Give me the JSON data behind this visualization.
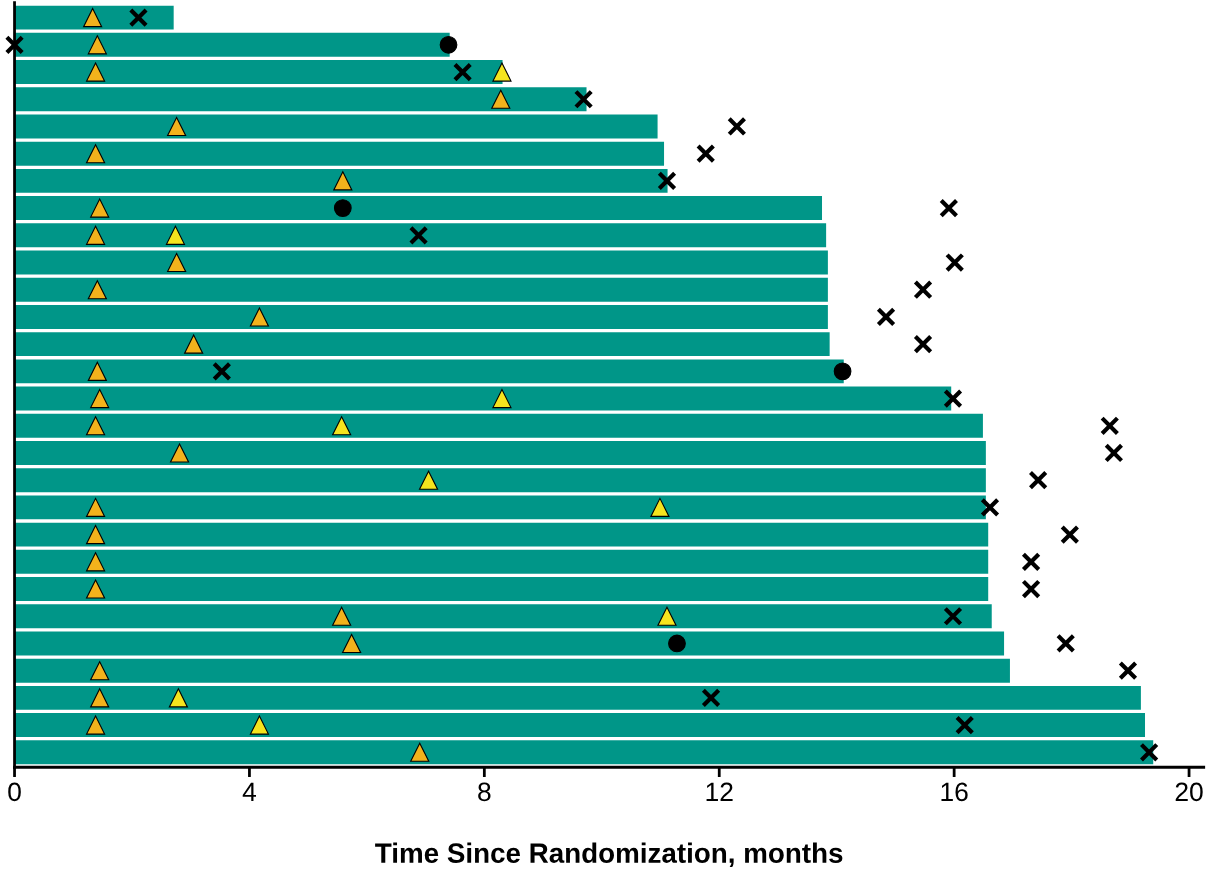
{
  "chart_data": {
    "type": "bar",
    "orientation": "horizontal",
    "xlabel": "Time Since Randomization, months",
    "tick_labels": "x",
    "grid": false,
    "categories": [
      null,
      null,
      null,
      null,
      null,
      null,
      null,
      null,
      null,
      null,
      null,
      null,
      null,
      null,
      null,
      null,
      null,
      null,
      null,
      null,
      null,
      null,
      null,
      null,
      null,
      null,
      null,
      null
    ],
    "xlim": [
      0,
      20.25
    ],
    "xticks": [
      0,
      4,
      8,
      12,
      16,
      20
    ],
    "series": [
      {
        "color": "#009688",
        "values": [
          2.71,
          7.41,
          8.31,
          9.74,
          10.95,
          11.06,
          11.12,
          13.75,
          13.82,
          13.85,
          13.85,
          13.85,
          13.88,
          14.12,
          15.95,
          16.49,
          16.54,
          16.54,
          16.54,
          16.58,
          16.58,
          16.58,
          16.64,
          16.85,
          16.95,
          19.18,
          19.25,
          19.39
        ]
      },
      {
        "type": "scatter",
        "marker": "triangle",
        "color": "#f2b21c",
        "values": [
          1.33,
          1.41,
          1.38,
          8.28,
          2.76,
          1.38,
          5.59,
          1.45,
          1.38,
          2.76,
          1.41,
          4.17,
          3.05,
          1.41,
          1.45,
          1.38,
          2.81,
          null,
          1.38,
          1.38,
          1.38,
          1.38,
          5.57,
          5.74,
          1.45,
          1.45,
          1.38,
          6.9
        ]
      },
      {
        "type": "scatter",
        "marker": "triangle",
        "color": "#f5e41e",
        "values": [
          null,
          null,
          8.3,
          null,
          null,
          null,
          null,
          null,
          2.74,
          null,
          null,
          null,
          null,
          null,
          8.3,
          5.57,
          null,
          7.05,
          10.99,
          null,
          null,
          null,
          11.11,
          null,
          null,
          2.79,
          4.17,
          null
        ]
      },
      {
        "type": "scatter",
        "marker": "circle",
        "color": "#000000",
        "values": [
          null,
          7.39,
          null,
          null,
          null,
          null,
          null,
          5.59,
          null,
          null,
          null,
          null,
          null,
          14.1,
          null,
          null,
          null,
          null,
          null,
          null,
          null,
          null,
          null,
          11.28,
          null,
          null,
          null,
          null
        ]
      },
      {
        "type": "scatter",
        "marker": "cross",
        "color": "#000000",
        "values": [
          2.11,
          0,
          7.63,
          9.69,
          12.3,
          11.77,
          11.11,
          15.91,
          6.88,
          16.01,
          15.47,
          14.84,
          15.47,
          3.53,
          15.98,
          18.65,
          18.72,
          17.43,
          16.61,
          17.97,
          17.31,
          17.31,
          15.98,
          17.9,
          18.96,
          11.86,
          16.18,
          19.32
        ]
      }
    ]
  }
}
